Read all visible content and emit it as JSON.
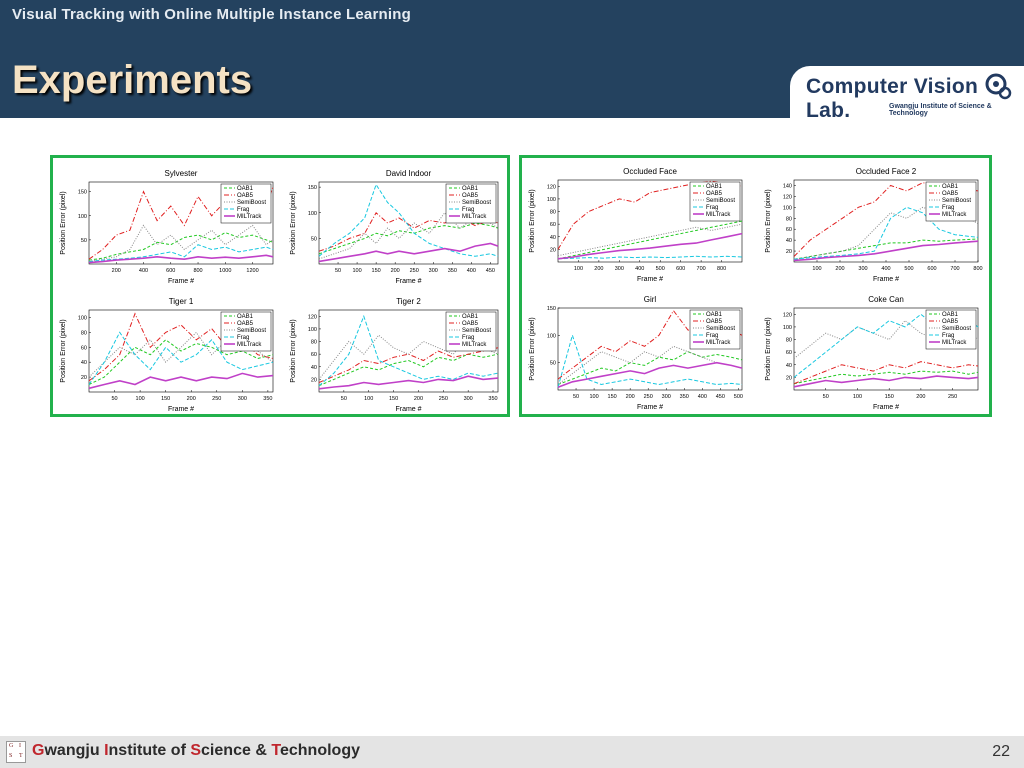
{
  "header": {
    "subtitle": "Visual Tracking with Online Multiple Instance Learning",
    "title": "Experiments",
    "logo": {
      "main": "Computer Vision Lab.",
      "sub": "Gwangju Institute of Science & Technology"
    }
  },
  "footer": {
    "institute": "Gwangju Institute of Science & Technology",
    "logo_letters": [
      "G",
      "I",
      "S",
      "T"
    ],
    "page_number": "22"
  },
  "colors": {
    "header_bg": "#24425f",
    "title_text": "#f5e2c4",
    "panel_border": "#22b14c",
    "OAB1": "#22c922",
    "OAB5": "#e02020",
    "SemiBoost": "#888888",
    "Frag": "#18c8e0",
    "MILTrack": "#c040c8"
  },
  "chart_data": [
    {
      "type": "line",
      "title": "Sylvester",
      "xlabel": "Frame #",
      "ylabel": "Position Error (pixel)",
      "xlim": [
        0,
        1350
      ],
      "ylim": [
        0,
        170
      ],
      "xticks": [
        200,
        400,
        600,
        800,
        1000,
        1200
      ],
      "yticks": [
        50,
        100,
        150
      ],
      "x": [
        0,
        100,
        200,
        300,
        400,
        500,
        600,
        700,
        800,
        900,
        1000,
        1100,
        1200,
        1300,
        1350
      ],
      "series": [
        {
          "name": "OAB1",
          "values": [
            8,
            12,
            20,
            25,
            30,
            45,
            40,
            55,
            60,
            50,
            65,
            55,
            60,
            50,
            45
          ]
        },
        {
          "name": "OAB5",
          "values": [
            10,
            30,
            60,
            70,
            150,
            90,
            120,
            80,
            140,
            100,
            130,
            90,
            150,
            120,
            160
          ]
        },
        {
          "name": "SemiBoost",
          "values": [
            5,
            10,
            15,
            30,
            80,
            40,
            60,
            30,
            50,
            70,
            40,
            60,
            80,
            40,
            50
          ]
        },
        {
          "name": "Frag",
          "values": [
            5,
            8,
            10,
            12,
            15,
            20,
            25,
            15,
            40,
            30,
            35,
            25,
            30,
            35,
            30
          ]
        },
        {
          "name": "MILTrack",
          "values": [
            3,
            5,
            8,
            10,
            12,
            15,
            12,
            10,
            15,
            12,
            14,
            12,
            15,
            18,
            15
          ]
        }
      ]
    },
    {
      "type": "line",
      "title": "David Indoor",
      "xlabel": "Frame #",
      "ylabel": "Position Error (pixel)",
      "xlim": [
        0,
        470
      ],
      "ylim": [
        0,
        160
      ],
      "xticks": [
        50,
        100,
        150,
        200,
        250,
        300,
        350,
        400,
        450
      ],
      "yticks": [
        50,
        100,
        150
      ],
      "x": [
        0,
        40,
        80,
        120,
        150,
        180,
        210,
        250,
        290,
        330,
        370,
        410,
        450,
        470
      ],
      "series": [
        {
          "name": "OAB1",
          "values": [
            20,
            30,
            40,
            50,
            60,
            55,
            65,
            60,
            70,
            75,
            70,
            80,
            75,
            70
          ]
        },
        {
          "name": "OAB5",
          "values": [
            25,
            35,
            50,
            60,
            100,
            80,
            90,
            70,
            85,
            80,
            90,
            75,
            85,
            80
          ]
        },
        {
          "name": "SemiBoost",
          "values": [
            10,
            20,
            30,
            60,
            40,
            70,
            50,
            80,
            60,
            100,
            70,
            90,
            80,
            70
          ]
        },
        {
          "name": "Frag",
          "values": [
            15,
            40,
            60,
            90,
            155,
            120,
            100,
            60,
            40,
            30,
            20,
            15,
            20,
            15
          ]
        },
        {
          "name": "MILTrack",
          "values": [
            5,
            10,
            15,
            20,
            25,
            20,
            25,
            20,
            25,
            30,
            25,
            35,
            40,
            35
          ]
        }
      ]
    },
    {
      "type": "line",
      "title": "Tiger 1",
      "xlabel": "Frame #",
      "ylabel": "Position Error (pixel)",
      "xlim": [
        0,
        360
      ],
      "ylim": [
        0,
        110
      ],
      "xticks": [
        50,
        100,
        150,
        200,
        250,
        300,
        350
      ],
      "yticks": [
        20,
        40,
        60,
        80,
        100
      ],
      "x": [
        0,
        30,
        60,
        90,
        120,
        150,
        180,
        210,
        240,
        270,
        300,
        330,
        360
      ],
      "series": [
        {
          "name": "OAB1",
          "values": [
            10,
            20,
            40,
            60,
            50,
            70,
            55,
            65,
            60,
            50,
            55,
            45,
            50
          ]
        },
        {
          "name": "OAB5",
          "values": [
            15,
            30,
            50,
            105,
            60,
            80,
            90,
            70,
            85,
            60,
            70,
            50,
            45
          ]
        },
        {
          "name": "SemiBoost",
          "values": [
            20,
            40,
            60,
            50,
            70,
            40,
            60,
            80,
            50,
            70,
            60,
            55,
            40
          ]
        },
        {
          "name": "Frag",
          "values": [
            10,
            40,
            80,
            50,
            30,
            60,
            40,
            50,
            70,
            40,
            30,
            35,
            40
          ]
        },
        {
          "name": "MILTrack",
          "values": [
            5,
            10,
            15,
            10,
            20,
            15,
            20,
            15,
            20,
            18,
            25,
            20,
            22
          ]
        }
      ]
    },
    {
      "type": "line",
      "title": "Tiger 2",
      "xlabel": "Frame #",
      "ylabel": "Position Error (pixel)",
      "xlim": [
        0,
        360
      ],
      "ylim": [
        0,
        130
      ],
      "xticks": [
        50,
        100,
        150,
        200,
        250,
        300,
        350
      ],
      "yticks": [
        20,
        40,
        60,
        80,
        100,
        120
      ],
      "x": [
        0,
        30,
        60,
        90,
        120,
        150,
        180,
        210,
        240,
        270,
        300,
        330,
        360
      ],
      "series": [
        {
          "name": "OAB1",
          "values": [
            10,
            20,
            30,
            40,
            35,
            45,
            50,
            40,
            55,
            50,
            60,
            55,
            60
          ]
        },
        {
          "name": "OAB5",
          "values": [
            15,
            25,
            35,
            50,
            45,
            55,
            60,
            50,
            65,
            55,
            60,
            65,
            70
          ]
        },
        {
          "name": "SemiBoost",
          "values": [
            20,
            50,
            80,
            60,
            90,
            70,
            60,
            80,
            70,
            60,
            90,
            70,
            60
          ]
        },
        {
          "name": "Frag",
          "values": [
            10,
            30,
            60,
            120,
            50,
            40,
            30,
            20,
            25,
            20,
            30,
            25,
            30
          ]
        },
        {
          "name": "MILTrack",
          "values": [
            5,
            8,
            10,
            15,
            12,
            15,
            18,
            15,
            20,
            18,
            25,
            20,
            22
          ]
        }
      ]
    },
    {
      "type": "line",
      "title": "Occluded Face",
      "xlabel": "Frame #",
      "ylabel": "Position Error (pixel)",
      "xlim": [
        0,
        900
      ],
      "ylim": [
        0,
        130
      ],
      "xticks": [
        100,
        200,
        300,
        400,
        500,
        600,
        700,
        800
      ],
      "yticks": [
        20,
        40,
        60,
        80,
        100,
        120
      ],
      "x": [
        0,
        75,
        150,
        225,
        300,
        375,
        450,
        525,
        600,
        675,
        750,
        825,
        900
      ],
      "series": [
        {
          "name": "OAB1",
          "values": [
            5,
            10,
            15,
            20,
            25,
            30,
            35,
            40,
            45,
            50,
            55,
            60,
            65
          ]
        },
        {
          "name": "OAB5",
          "values": [
            20,
            60,
            80,
            90,
            100,
            95,
            110,
            115,
            120,
            125,
            128,
            125,
            120
          ]
        },
        {
          "name": "SemiBoost",
          "values": [
            10,
            15,
            20,
            25,
            30,
            35,
            40,
            45,
            50,
            55,
            50,
            55,
            60
          ]
        },
        {
          "name": "Frag",
          "values": [
            5,
            6,
            7,
            6,
            8,
            7,
            8,
            7,
            8,
            9,
            8,
            9,
            8
          ]
        },
        {
          "name": "MILTrack",
          "values": [
            5,
            8,
            12,
            15,
            18,
            20,
            22,
            25,
            28,
            30,
            35,
            40,
            45
          ]
        }
      ]
    },
    {
      "type": "line",
      "title": "Occluded Face 2",
      "xlabel": "Frame #",
      "ylabel": "Position Error (pixel)",
      "xlim": [
        0,
        800
      ],
      "ylim": [
        0,
        150
      ],
      "xticks": [
        100,
        200,
        300,
        400,
        500,
        600,
        700,
        800
      ],
      "yticks": [
        20,
        40,
        60,
        80,
        100,
        120,
        140
      ],
      "x": [
        0,
        70,
        140,
        210,
        280,
        350,
        420,
        490,
        560,
        630,
        700,
        800
      ],
      "series": [
        {
          "name": "OAB1",
          "values": [
            5,
            10,
            15,
            20,
            25,
            30,
            35,
            35,
            40,
            38,
            40,
            42
          ]
        },
        {
          "name": "OAB5",
          "values": [
            10,
            40,
            60,
            80,
            100,
            110,
            140,
            130,
            145,
            140,
            135,
            130
          ]
        },
        {
          "name": "SemiBoost",
          "values": [
            5,
            10,
            15,
            20,
            30,
            60,
            90,
            80,
            100,
            90,
            95,
            70
          ]
        },
        {
          "name": "Frag",
          "values": [
            5,
            8,
            10,
            12,
            15,
            20,
            80,
            100,
            90,
            60,
            50,
            45
          ]
        },
        {
          "name": "MILTrack",
          "values": [
            3,
            5,
            8,
            10,
            12,
            15,
            20,
            25,
            30,
            32,
            35,
            38
          ]
        }
      ]
    },
    {
      "type": "line",
      "title": "Girl",
      "xlabel": "Frame #",
      "ylabel": "Position Error (pixel)",
      "xlim": [
        0,
        510
      ],
      "ylim": [
        0,
        150
      ],
      "xticks": [
        50,
        100,
        150,
        200,
        250,
        300,
        350,
        400,
        450,
        500
      ],
      "yticks": [
        50,
        100,
        150
      ],
      "x": [
        0,
        40,
        80,
        120,
        160,
        200,
        240,
        280,
        320,
        360,
        400,
        440,
        480,
        510
      ],
      "series": [
        {
          "name": "OAB1",
          "values": [
            10,
            20,
            30,
            40,
            35,
            50,
            45,
            60,
            55,
            70,
            60,
            65,
            60,
            55
          ]
        },
        {
          "name": "OAB5",
          "values": [
            20,
            40,
            60,
            80,
            70,
            90,
            80,
            100,
            145,
            110,
            100,
            120,
            110,
            100
          ]
        },
        {
          "name": "SemiBoost",
          "values": [
            10,
            30,
            50,
            70,
            60,
            50,
            70,
            60,
            80,
            70,
            60,
            50,
            45,
            40
          ]
        },
        {
          "name": "Frag",
          "values": [
            5,
            100,
            20,
            10,
            15,
            20,
            15,
            10,
            15,
            20,
            15,
            10,
            12,
            10
          ]
        },
        {
          "name": "MILTrack",
          "values": [
            5,
            15,
            20,
            25,
            30,
            35,
            30,
            40,
            45,
            40,
            45,
            50,
            45,
            40
          ]
        }
      ]
    },
    {
      "type": "line",
      "title": "Coke Can",
      "xlabel": "Frame #",
      "ylabel": "Position Error (pixel)",
      "xlim": [
        0,
        290
      ],
      "ylim": [
        0,
        130
      ],
      "xticks": [
        50,
        100,
        150,
        200,
        250
      ],
      "yticks": [
        20,
        40,
        60,
        80,
        100,
        120
      ],
      "x": [
        0,
        25,
        50,
        75,
        100,
        125,
        150,
        175,
        200,
        225,
        250,
        275,
        290
      ],
      "series": [
        {
          "name": "OAB1",
          "values": [
            10,
            15,
            20,
            25,
            22,
            25,
            28,
            25,
            30,
            28,
            30,
            25,
            28
          ]
        },
        {
          "name": "OAB5",
          "values": [
            10,
            20,
            30,
            40,
            35,
            30,
            40,
            35,
            45,
            40,
            35,
            40,
            38
          ]
        },
        {
          "name": "SemiBoost",
          "values": [
            50,
            70,
            90,
            80,
            100,
            90,
            80,
            110,
            90,
            80,
            100,
            90,
            80
          ]
        },
        {
          "name": "Frag",
          "values": [
            20,
            40,
            60,
            80,
            100,
            90,
            110,
            100,
            120,
            100,
            90,
            110,
            100
          ]
        },
        {
          "name": "MILTrack",
          "values": [
            5,
            10,
            15,
            12,
            15,
            18,
            15,
            20,
            18,
            22,
            20,
            18,
            20
          ]
        }
      ]
    }
  ]
}
